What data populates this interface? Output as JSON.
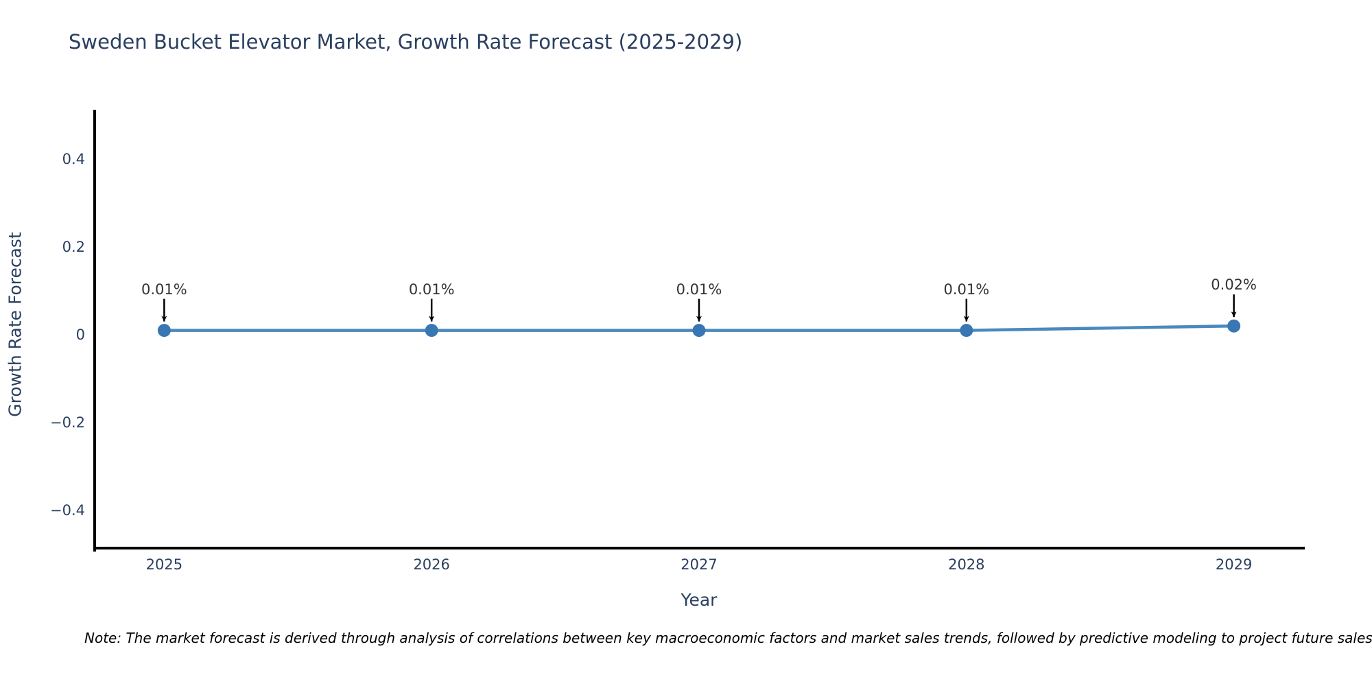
{
  "title": "Sweden Bucket Elevator Market, Growth Rate Forecast (2025-2029)",
  "note": "Note: The market forecast is derived through analysis of correlations between key macroeconomic factors and market sales trends, followed by predictive modeling to project future sales",
  "colors": {
    "text": "#2a3f5f",
    "axis": "#000000",
    "line": "#4a89bd",
    "marker": "#3877b4",
    "annotation_text": "#333333",
    "arrow": "#000000",
    "note_text": "#000000",
    "background": "#ffffff"
  },
  "chart_data": {
    "type": "line",
    "title": "Sweden Bucket Elevator Market, Growth Rate Forecast (2025-2029)",
    "xlabel": "Year",
    "ylabel": "Growth Rate Forecast",
    "x": [
      2025,
      2026,
      2027,
      2028,
      2029
    ],
    "values": [
      0.01,
      0.01,
      0.01,
      0.01,
      0.02
    ],
    "labels": [
      "0.01%",
      "0.01%",
      "0.01%",
      "0.01%",
      "0.02%"
    ],
    "xticks": [
      2025,
      2026,
      2027,
      2028,
      2029
    ],
    "xtick_labels": [
      "2025",
      "2026",
      "2027",
      "2028",
      "2029"
    ],
    "yticks": [
      0.4,
      0.2,
      0,
      -0.2,
      -0.4
    ],
    "ytick_labels": [
      "0.4",
      "0.2",
      "0",
      "−0.2",
      "−0.4"
    ],
    "xlim": [
      2024.74,
      2029.26
    ],
    "ylim": [
      -0.4875,
      0.5125
    ],
    "grid": false,
    "legend": null,
    "marker": "circle",
    "annotations_have_arrows": true
  }
}
